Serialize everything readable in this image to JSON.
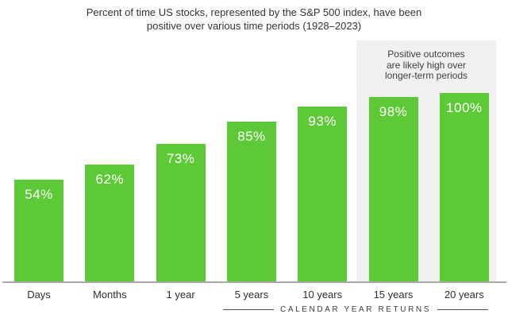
{
  "title": {
    "lines": [
      "Percent of time US stocks, represented by the S&P 500 index, have been",
      "positive over various time periods (1928–2023)"
    ]
  },
  "annotation": {
    "lines": [
      "Positive outcomes",
      "are likely high over",
      "longer-term periods"
    ]
  },
  "footer": {
    "label": "CALENDAR YEAR RETURNS"
  },
  "colors": {
    "bar_green": "#5dc936",
    "highlight_band": "#f0f0f0",
    "axis_line": "#a8a8a8",
    "title_text": "#333333",
    "tick_text": "#2f2f2f",
    "value_text": "#ffffff",
    "footer_text": "#3c3c3c"
  },
  "chart_data": {
    "type": "bar",
    "title": "Percent of time US stocks, represented by the S&P 500 index, have been positive over various time periods (1928–2023)",
    "categories": [
      "Days",
      "Months",
      "1 year",
      "5 years",
      "10 years",
      "15 years",
      "20 years"
    ],
    "values": [
      54,
      62,
      73,
      85,
      93,
      98,
      100
    ],
    "value_labels": [
      "54%",
      "62%",
      "73%",
      "85%",
      "93%",
      "98%",
      "100%"
    ],
    "xlabel": "CALENDAR YEAR RETURNS",
    "ylabel": "",
    "ylim": [
      0,
      100
    ],
    "grid": false,
    "legend": false,
    "highlight": {
      "categories": [
        "15 years",
        "20 years"
      ],
      "note": "Positive outcomes are likely high over longer-term periods",
      "band_color": "#f0f0f0"
    }
  }
}
